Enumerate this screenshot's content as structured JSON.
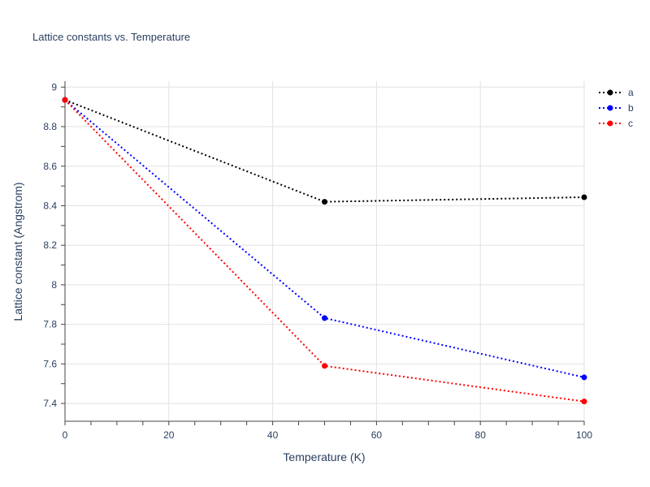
{
  "chart_data": {
    "type": "line",
    "title": "Lattice constants vs. Temperature",
    "xlabel": "Temperature (K)",
    "ylabel": "Lattice constant (Angstrom)",
    "x": [
      0,
      50,
      100
    ],
    "xlim": [
      0,
      100
    ],
    "ylim": [
      7.31,
      9.03
    ],
    "xticks": [
      0,
      20,
      40,
      60,
      80,
      100
    ],
    "xtick_labels": [
      "0",
      "20",
      "40",
      "60",
      "80",
      "100"
    ],
    "yticks": [
      7.4,
      7.6,
      7.8,
      8,
      8.2,
      8.4,
      8.6,
      8.8,
      9
    ],
    "ytick_labels": [
      "7.4",
      "7.6",
      "7.8",
      "8",
      "8.2",
      "8.4",
      "8.6",
      "8.8",
      "9"
    ],
    "grid": true,
    "legend_position": "top-right",
    "series": [
      {
        "name": "a",
        "color": "#000000",
        "line_style": "dotted",
        "marker": "circle",
        "values": [
          8.935,
          8.42,
          8.443
        ]
      },
      {
        "name": "b",
        "color": "#0000ff",
        "line_style": "dotted",
        "marker": "circle",
        "values": [
          8.935,
          7.832,
          7.532
        ]
      },
      {
        "name": "c",
        "color": "#ff0000",
        "line_style": "dotted",
        "marker": "circle",
        "values": [
          8.935,
          7.59,
          7.41
        ]
      }
    ]
  }
}
